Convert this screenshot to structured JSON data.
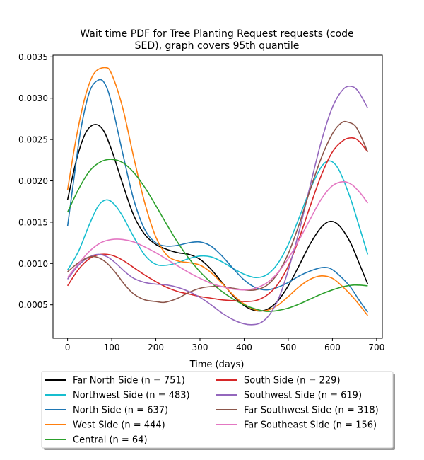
{
  "chart_data": {
    "type": "line",
    "title_line1": "Wait time PDF for Tree Planting Request  requests (code",
    "title_line2": "SED), graph covers 95th quantile",
    "xlabel": "Time (days)",
    "ylabel": "",
    "xlim": [
      -33,
      713
    ],
    "ylim": [
      9.5e-05,
      0.00352
    ],
    "x_ticks": [
      0,
      100,
      200,
      300,
      400,
      500,
      600,
      700
    ],
    "x_tick_labels": [
      "0",
      "100",
      "200",
      "300",
      "400",
      "500",
      "600",
      "700"
    ],
    "y_ticks": [
      0.0005,
      0.001,
      0.0015,
      0.002,
      0.0025,
      0.003,
      0.0035
    ],
    "y_tick_labels": [
      "0.0005",
      "0.0010",
      "0.0015",
      "0.0020",
      "0.0025",
      "0.0030",
      "0.0035"
    ],
    "grid": false,
    "legend_placement": "below-plot",
    "series": [
      {
        "name": "Far North Side (n = 751)",
        "color": "#000000",
        "points": [
          [
            0,
            0.00177
          ],
          [
            20,
            0.00225
          ],
          [
            40,
            0.00257
          ],
          [
            60,
            0.00268
          ],
          [
            80,
            0.00262
          ],
          [
            100,
            0.00237
          ],
          [
            125,
            0.00196
          ],
          [
            150,
            0.00158
          ],
          [
            175,
            0.00135
          ],
          [
            200,
            0.00123
          ],
          [
            225,
            0.00117
          ],
          [
            250,
            0.00113
          ],
          [
            275,
            0.00111
          ],
          [
            300,
            0.00105
          ],
          [
            325,
            0.00093
          ],
          [
            350,
            0.00077
          ],
          [
            375,
            0.00061
          ],
          [
            400,
            0.00049
          ],
          [
            425,
            0.00043
          ],
          [
            450,
            0.00044
          ],
          [
            475,
            0.00054
          ],
          [
            500,
            0.00073
          ],
          [
            525,
            0.00098
          ],
          [
            550,
            0.00124
          ],
          [
            575,
            0.00144
          ],
          [
            595,
            0.00151
          ],
          [
            615,
            0.00146
          ],
          [
            640,
            0.00126
          ],
          [
            660,
            0.00101
          ],
          [
            680,
            0.00075
          ]
        ]
      },
      {
        "name": "Northwest Side (n = 483)",
        "color": "#17becf",
        "points": [
          [
            0,
            0.00092
          ],
          [
            25,
            0.00115
          ],
          [
            50,
            0.00148
          ],
          [
            70,
            0.0017
          ],
          [
            88,
            0.00177
          ],
          [
            105,
            0.00172
          ],
          [
            125,
            0.00157
          ],
          [
            150,
            0.00132
          ],
          [
            175,
            0.0011
          ],
          [
            200,
            0.00099
          ],
          [
            225,
            0.00098
          ],
          [
            250,
            0.00101
          ],
          [
            275,
            0.00106
          ],
          [
            300,
            0.00109
          ],
          [
            325,
            0.00108
          ],
          [
            350,
            0.00102
          ],
          [
            375,
            0.00094
          ],
          [
            400,
            0.00087
          ],
          [
            425,
            0.00083
          ],
          [
            450,
            0.00086
          ],
          [
            475,
            0.00099
          ],
          [
            500,
            0.00123
          ],
          [
            525,
            0.00156
          ],
          [
            550,
            0.0019
          ],
          [
            575,
            0.00217
          ],
          [
            595,
            0.00224
          ],
          [
            615,
            0.00213
          ],
          [
            640,
            0.0018
          ],
          [
            660,
            0.00146
          ],
          [
            680,
            0.00111
          ]
        ]
      },
      {
        "name": "North Side (n = 637)",
        "color": "#1f77b4",
        "points": [
          [
            0,
            0.00145
          ],
          [
            15,
            0.00205
          ],
          [
            30,
            0.00262
          ],
          [
            50,
            0.00308
          ],
          [
            70,
            0.00322
          ],
          [
            85,
            0.00317
          ],
          [
            100,
            0.00293
          ],
          [
            125,
            0.00233
          ],
          [
            150,
            0.00177
          ],
          [
            175,
            0.00141
          ],
          [
            200,
            0.00125
          ],
          [
            225,
            0.00121
          ],
          [
            250,
            0.00122
          ],
          [
            275,
            0.00125
          ],
          [
            300,
            0.00126
          ],
          [
            325,
            0.00121
          ],
          [
            350,
            0.00109
          ],
          [
            375,
            0.00094
          ],
          [
            400,
            0.0008
          ],
          [
            425,
            0.00071
          ],
          [
            450,
            0.00068
          ],
          [
            475,
            0.00071
          ],
          [
            500,
            0.00077
          ],
          [
            525,
            0.00085
          ],
          [
            550,
            0.00091
          ],
          [
            575,
            0.00095
          ],
          [
            595,
            0.00094
          ],
          [
            615,
            0.00086
          ],
          [
            640,
            0.00072
          ],
          [
            660,
            0.00056
          ],
          [
            680,
            0.00041
          ]
        ]
      },
      {
        "name": "West Side (n = 444)",
        "color": "#ff7f0e",
        "points": [
          [
            0,
            0.00189
          ],
          [
            20,
            0.00253
          ],
          [
            40,
            0.00302
          ],
          [
            60,
            0.0033
          ],
          [
            85,
            0.00337
          ],
          [
            100,
            0.00329
          ],
          [
            125,
            0.00288
          ],
          [
            150,
            0.00228
          ],
          [
            175,
            0.00173
          ],
          [
            200,
            0.00132
          ],
          [
            225,
            0.0011
          ],
          [
            250,
            0.00103
          ],
          [
            275,
            0.00101
          ],
          [
            300,
            0.00098
          ],
          [
            325,
            0.00089
          ],
          [
            350,
            0.00076
          ],
          [
            375,
            0.00062
          ],
          [
            400,
            0.00051
          ],
          [
            425,
            0.00044
          ],
          [
            450,
            0.00043
          ],
          [
            475,
            0.00049
          ],
          [
            500,
            0.0006
          ],
          [
            525,
            0.00072
          ],
          [
            550,
            0.00081
          ],
          [
            575,
            0.00085
          ],
          [
            600,
            0.00082
          ],
          [
            625,
            0.00071
          ],
          [
            650,
            0.00057
          ],
          [
            680,
            0.00037
          ]
        ]
      },
      {
        "name": "Central (n = 64)",
        "color": "#2ca02c",
        "points": [
          [
            0,
            0.00162
          ],
          [
            25,
            0.0019
          ],
          [
            50,
            0.00212
          ],
          [
            75,
            0.00223
          ],
          [
            100,
            0.00226
          ],
          [
            125,
            0.00222
          ],
          [
            150,
            0.0021
          ],
          [
            175,
            0.00192
          ],
          [
            200,
            0.0017
          ],
          [
            225,
            0.00147
          ],
          [
            250,
            0.00125
          ],
          [
            275,
            0.00106
          ],
          [
            300,
            0.0009
          ],
          [
            325,
            0.00077
          ],
          [
            350,
            0.00066
          ],
          [
            375,
            0.00057
          ],
          [
            400,
            0.0005
          ],
          [
            425,
            0.00045
          ],
          [
            450,
            0.00042
          ],
          [
            475,
            0.00043
          ],
          [
            500,
            0.00046
          ],
          [
            525,
            0.00051
          ],
          [
            550,
            0.00057
          ],
          [
            575,
            0.00063
          ],
          [
            600,
            0.00068
          ],
          [
            625,
            0.00072
          ],
          [
            650,
            0.00074
          ],
          [
            680,
            0.00073
          ]
        ]
      },
      {
        "name": "South Side (n = 229)",
        "color": "#d62728",
        "points": [
          [
            0,
            0.00073
          ],
          [
            25,
            0.00093
          ],
          [
            50,
            0.00106
          ],
          [
            75,
            0.00111
          ],
          [
            100,
            0.0011
          ],
          [
            125,
            0.00104
          ],
          [
            150,
            0.00095
          ],
          [
            175,
            0.00086
          ],
          [
            200,
            0.00078
          ],
          [
            225,
            0.00071
          ],
          [
            250,
            0.00066
          ],
          [
            275,
            0.00063
          ],
          [
            300,
            0.0006
          ],
          [
            325,
            0.00058
          ],
          [
            350,
            0.00056
          ],
          [
            375,
            0.00055
          ],
          [
            400,
            0.00054
          ],
          [
            425,
            0.00055
          ],
          [
            450,
            0.00061
          ],
          [
            475,
            0.00074
          ],
          [
            500,
            0.00097
          ],
          [
            525,
            0.00131
          ],
          [
            550,
            0.0017
          ],
          [
            575,
            0.00207
          ],
          [
            600,
            0.00235
          ],
          [
            625,
            0.00249
          ],
          [
            645,
            0.00252
          ],
          [
            660,
            0.00248
          ],
          [
            680,
            0.00235
          ]
        ]
      },
      {
        "name": "Southwest Side (n = 619)",
        "color": "#9467bd",
        "points": [
          [
            0,
            0.00081
          ],
          [
            25,
            0.00098
          ],
          [
            50,
            0.00108
          ],
          [
            70,
            0.00111
          ],
          [
            90,
            0.00108
          ],
          [
            110,
            0.001
          ],
          [
            130,
            0.0009
          ],
          [
            150,
            0.00082
          ],
          [
            175,
            0.00077
          ],
          [
            200,
            0.00075
          ],
          [
            225,
            0.00074
          ],
          [
            250,
            0.00071
          ],
          [
            275,
            0.00066
          ],
          [
            300,
            0.00059
          ],
          [
            325,
            0.0005
          ],
          [
            350,
            0.0004
          ],
          [
            375,
            0.00032
          ],
          [
            400,
            0.00027
          ],
          [
            420,
            0.00026
          ],
          [
            440,
            0.00029
          ],
          [
            460,
            0.0004
          ],
          [
            480,
            0.0006
          ],
          [
            500,
            0.00092
          ],
          [
            525,
            0.0014
          ],
          [
            550,
            0.00195
          ],
          [
            575,
            0.00248
          ],
          [
            600,
            0.00289
          ],
          [
            625,
            0.00311
          ],
          [
            645,
            0.00314
          ],
          [
            660,
            0.00307
          ],
          [
            680,
            0.00288
          ]
        ]
      },
      {
        "name": "Far Southwest Side (n = 318)",
        "color": "#8c564b",
        "points": [
          [
            0,
            0.0009
          ],
          [
            25,
            0.00101
          ],
          [
            50,
            0.00108
          ],
          [
            70,
            0.00107
          ],
          [
            90,
            0.001
          ],
          [
            110,
            0.00088
          ],
          [
            130,
            0.00074
          ],
          [
            150,
            0.00063
          ],
          [
            175,
            0.00056
          ],
          [
            200,
            0.00054
          ],
          [
            220,
            0.00053
          ],
          [
            250,
            0.00058
          ],
          [
            275,
            0.00065
          ],
          [
            300,
            0.0007
          ],
          [
            325,
            0.00072
          ],
          [
            350,
            0.00072
          ],
          [
            375,
            0.0007
          ],
          [
            400,
            0.00068
          ],
          [
            425,
            0.00068
          ],
          [
            450,
            0.00073
          ],
          [
            475,
            0.00087
          ],
          [
            500,
            0.00112
          ],
          [
            525,
            0.00148
          ],
          [
            550,
            0.0019
          ],
          [
            575,
            0.00228
          ],
          [
            600,
            0.00257
          ],
          [
            620,
            0.0027
          ],
          [
            635,
            0.00271
          ],
          [
            655,
            0.00264
          ],
          [
            680,
            0.00235
          ]
        ]
      },
      {
        "name": "Far Southeast Side (n = 156)",
        "color": "#e377c2",
        "points": [
          [
            0,
            0.00083
          ],
          [
            25,
            0.001
          ],
          [
            50,
            0.00115
          ],
          [
            75,
            0.00125
          ],
          [
            100,
            0.00129
          ],
          [
            125,
            0.00129
          ],
          [
            150,
            0.00126
          ],
          [
            175,
            0.0012
          ],
          [
            200,
            0.00113
          ],
          [
            225,
            0.00105
          ],
          [
            250,
            0.00097
          ],
          [
            275,
            0.00089
          ],
          [
            300,
            0.00082
          ],
          [
            325,
            0.00076
          ],
          [
            350,
            0.00072
          ],
          [
            375,
            0.00069
          ],
          [
            400,
            0.00068
          ],
          [
            425,
            0.0007
          ],
          [
            450,
            0.00076
          ],
          [
            475,
            0.00088
          ],
          [
            500,
            0.00106
          ],
          [
            525,
            0.00129
          ],
          [
            550,
            0.00154
          ],
          [
            575,
            0.00178
          ],
          [
            600,
            0.00194
          ],
          [
            625,
            0.00199
          ],
          [
            645,
            0.00195
          ],
          [
            665,
            0.00184
          ],
          [
            680,
            0.00173
          ]
        ]
      }
    ]
  }
}
